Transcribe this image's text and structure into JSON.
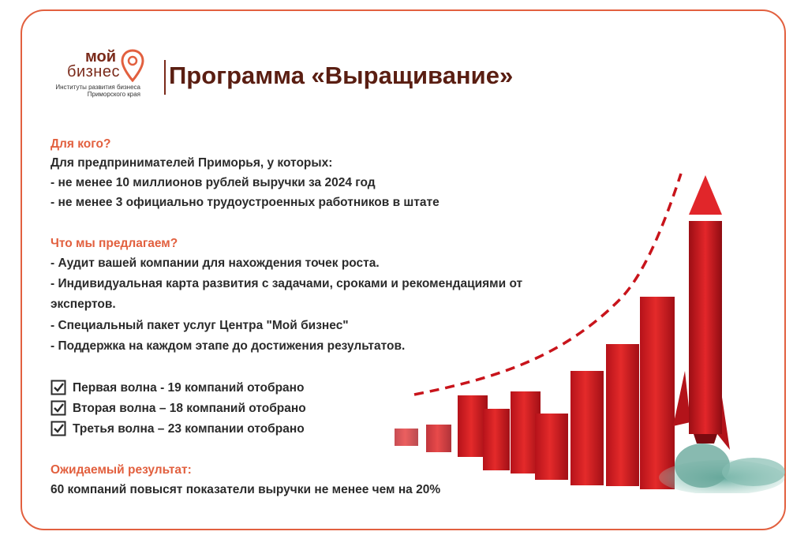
{
  "logo": {
    "word1": "мой",
    "word2": "бизнес",
    "subtitle_line1": "Институты развития бизнеса",
    "subtitle_line2": "Приморского края"
  },
  "title": "Программа «Выращивание»",
  "who": {
    "heading": "Для кого?",
    "intro": "Для предпринимателей Приморья, у которых:",
    "items": [
      "- не менее 10 миллионов рублей выручки за 2024 год",
      "- не менее 3 официально трудоустроенных работников в штате"
    ]
  },
  "offer": {
    "heading": "Что мы предлагаем?",
    "items": [
      "- Аудит вашей компании для нахождения точек роста.",
      "- Индивидуальная карта развития с задачами, сроками и рекомендациями от",
      "экспертов.",
      "- Специальный пакет услуг Центра \"Мой бизнес\"",
      "- Поддержка на каждом этапе до достижения результатов."
    ]
  },
  "waves": [
    "Первая волна - 19 компаний отобрано",
    "Вторая волна – 18 компаний отобрано",
    "Третья волна – 23 компании отобрано"
  ],
  "result": {
    "heading": "Ожидаемый результат:",
    "text": "60 компаний повысят показатели выручки не менее чем на 20%"
  },
  "colors": {
    "accent": "#e2603f",
    "title": "#5a1e12",
    "bars": "#d8191c"
  },
  "icons": {
    "checkbox": "checkbox-checked-icon",
    "logo": "location-pin-icon",
    "illustration": "rocket-growth-chart"
  }
}
